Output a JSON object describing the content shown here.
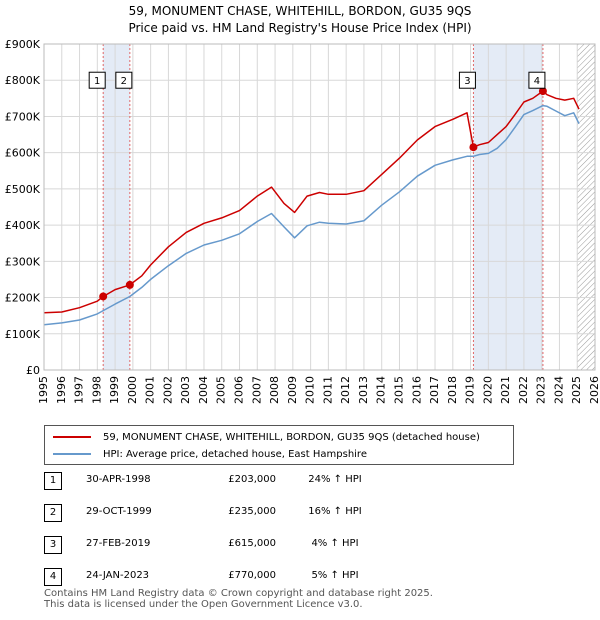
{
  "header": {
    "title_line1": "59, MONUMENT CHASE, WHITEHILL, BORDON, GU35 9QS",
    "title_line2": "Price paid vs. HM Land Registry's House Price Index (HPI)"
  },
  "chart_data": {
    "type": "line",
    "title": "59, MONUMENT CHASE, WHITEHILL, BORDON, GU35 9QS",
    "subtitle": "Price paid vs. HM Land Registry's House Price Index (HPI)",
    "xlabel": "",
    "ylabel": "",
    "xlim": [
      1995,
      2026
    ],
    "ylim": [
      0,
      900000
    ],
    "grid": true,
    "x_ticks": [
      1995,
      1996,
      1997,
      1998,
      1999,
      2000,
      2001,
      2002,
      2003,
      2004,
      2005,
      2006,
      2007,
      2008,
      2009,
      2010,
      2011,
      2012,
      2013,
      2014,
      2015,
      2016,
      2017,
      2018,
      2019,
      2020,
      2021,
      2022,
      2023,
      2024,
      2025,
      2026
    ],
    "y_ticks": [
      {
        "value": 0,
        "label": "£0"
      },
      {
        "value": 100000,
        "label": "£100K"
      },
      {
        "value": 200000,
        "label": "£200K"
      },
      {
        "value": 300000,
        "label": "£300K"
      },
      {
        "value": 400000,
        "label": "£400K"
      },
      {
        "value": 500000,
        "label": "£500K"
      },
      {
        "value": 600000,
        "label": "£600K"
      },
      {
        "value": 700000,
        "label": "£700K"
      },
      {
        "value": 800000,
        "label": "£800K"
      },
      {
        "value": 900000,
        "label": "£900K"
      }
    ],
    "series": [
      {
        "name": "59, MONUMENT CHASE, WHITEHILL, BORDON, GU35 9QS (detached house)",
        "color": "#cc0000",
        "x": [
          1995.0,
          1996.0,
          1997.0,
          1998.0,
          1998.33,
          1999.0,
          1999.83,
          2000.5,
          2001.0,
          2002.0,
          2003.0,
          2004.0,
          2005.0,
          2006.0,
          2007.0,
          2007.8,
          2008.5,
          2009.1,
          2009.8,
          2010.5,
          2011.0,
          2012.0,
          2013.0,
          2014.0,
          2015.0,
          2016.0,
          2017.0,
          2018.0,
          2018.8,
          2019.16,
          2019.5,
          2020.0,
          2020.5,
          2021.0,
          2021.5,
          2022.0,
          2022.5,
          2023.07,
          2023.3,
          2023.8,
          2024.3,
          2024.8,
          2025.1
        ],
        "values": [
          158000,
          160000,
          172000,
          190000,
          203000,
          222000,
          235000,
          260000,
          290000,
          340000,
          380000,
          405000,
          420000,
          440000,
          480000,
          505000,
          460000,
          435000,
          480000,
          490000,
          485000,
          485000,
          495000,
          540000,
          585000,
          635000,
          672000,
          692000,
          710000,
          615000,
          622000,
          628000,
          650000,
          672000,
          705000,
          740000,
          750000,
          770000,
          760000,
          750000,
          745000,
          750000,
          720000
        ]
      },
      {
        "name": "HPI: Average price, detached house, East Hampshire",
        "color": "#6699cc",
        "x": [
          1995.0,
          1996.0,
          1997.0,
          1998.0,
          1998.33,
          1999.0,
          1999.83,
          2000.5,
          2001.0,
          2002.0,
          2003.0,
          2004.0,
          2005.0,
          2006.0,
          2007.0,
          2007.8,
          2008.5,
          2009.1,
          2009.8,
          2010.5,
          2011.0,
          2012.0,
          2013.0,
          2014.0,
          2015.0,
          2016.0,
          2017.0,
          2018.0,
          2018.8,
          2019.16,
          2019.5,
          2020.0,
          2020.5,
          2021.0,
          2021.5,
          2022.0,
          2022.5,
          2023.07,
          2023.3,
          2023.8,
          2024.3,
          2024.8,
          2025.1
        ],
        "values": [
          125000,
          130000,
          138000,
          155000,
          164000,
          182000,
          203000,
          228000,
          250000,
          288000,
          322000,
          345000,
          358000,
          376000,
          410000,
          432000,
          395000,
          365000,
          398000,
          408000,
          405000,
          403000,
          412000,
          455000,
          492000,
          535000,
          565000,
          580000,
          590000,
          590000,
          595000,
          598000,
          612000,
          636000,
          670000,
          705000,
          716000,
          730000,
          728000,
          715000,
          702000,
          710000,
          680000
        ]
      }
    ],
    "sales": [
      {
        "label": "1",
        "x": 1998.33,
        "value": 203000
      },
      {
        "label": "2",
        "x": 1999.83,
        "value": 235000
      },
      {
        "label": "3",
        "x": 2019.16,
        "value": 615000
      },
      {
        "label": "4",
        "x": 2023.07,
        "value": 770000
      }
    ],
    "shaded_ranges": [
      [
        1998.33,
        1999.83
      ],
      [
        2019.16,
        2023.07
      ]
    ],
    "hatched_from": 2025.0
  },
  "legend": {
    "property_label": "59, MONUMENT CHASE, WHITEHILL, BORDON, GU35 9QS (detached house)",
    "hpi_label": "HPI: Average price, detached house, East Hampshire",
    "property_color": "#cc0000",
    "hpi_color": "#6699cc"
  },
  "sales_table": [
    {
      "num": "1",
      "date": "30-APR-1998",
      "price": "£203,000",
      "hpi": "24% ↑ HPI"
    },
    {
      "num": "2",
      "date": "29-OCT-1999",
      "price": "£235,000",
      "hpi": "16% ↑ HPI"
    },
    {
      "num": "3",
      "date": "27-FEB-2019",
      "price": "£615,000",
      "hpi": "4% ↑ HPI"
    },
    {
      "num": "4",
      "date": "24-JAN-2023",
      "price": "£770,000",
      "hpi": "5% ↑ HPI"
    }
  ],
  "footer": {
    "line1": "Contains HM Land Registry data © Crown copyright and database right 2025.",
    "line2": "This data is licensed under the Open Government Licence v3.0."
  }
}
